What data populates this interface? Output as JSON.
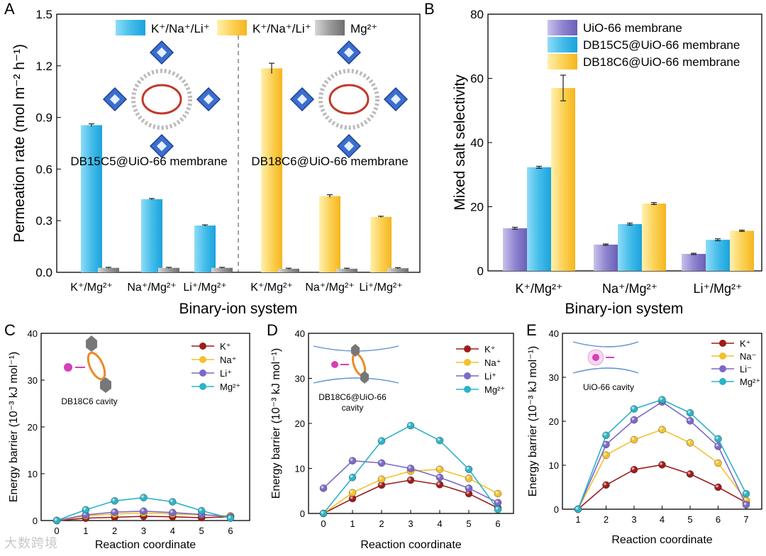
{
  "panel_letters": [
    "A",
    "B",
    "C",
    "D",
    "E"
  ],
  "watermark": "大数跨境",
  "chart_data": [
    {
      "panel": "A",
      "type": "bar",
      "xlabel": "Binary-ion system",
      "ylabel": "Permeation rate (mol m⁻² h⁻¹)",
      "ylim": [
        0,
        1.5
      ],
      "yticks": [
        "0.0",
        "0.3",
        "0.6",
        "0.9",
        "1.2",
        "1.5"
      ],
      "categories": [
        "K⁺/Mg²⁺",
        "Na⁺/Mg²⁺",
        "Li⁺/Mg²⁺",
        "K⁺/Mg²⁺",
        "Na⁺/Mg²⁺",
        "Li⁺/Mg²⁺"
      ],
      "legend": [
        "K⁺/Na⁺/Li⁺",
        "K⁺/Na⁺/Li⁺",
        "Mg²⁺"
      ],
      "groups": [
        "DB15C5@UiO-66 membrane",
        "DB18C6@UiO-66 membrane"
      ],
      "series": [
        {
          "name": "K⁺/Na⁺/Li⁺ (DB15C5)",
          "color": "#39b6e8",
          "values": [
            0.855,
            0.425,
            0.272,
            null,
            null,
            null
          ],
          "errors": [
            0.008,
            0.004,
            0.004,
            null,
            null,
            null
          ]
        },
        {
          "name": "K⁺/Na⁺/Li⁺ (DB18C6)",
          "color": "#fbc93b",
          "values": [
            null,
            null,
            null,
            1.185,
            0.443,
            0.322
          ],
          "errors": [
            null,
            null,
            null,
            0.03,
            0.008,
            0.004
          ]
        },
        {
          "name": "Mg²⁺",
          "color": "#9a9a9a",
          "values": [
            0.026,
            0.026,
            0.026,
            0.021,
            0.021,
            0.024
          ],
          "errors": [
            0.003,
            0.003,
            0.003,
            0.003,
            0.003,
            0.003
          ]
        }
      ]
    },
    {
      "panel": "B",
      "type": "bar",
      "xlabel": "Binary-ion system",
      "ylabel": "Mixed salt selectivity",
      "ylim": [
        0,
        80
      ],
      "yticks": [
        "0",
        "20",
        "40",
        "60",
        "80"
      ],
      "categories": [
        "K⁺/Mg²⁺",
        "Na⁺/Mg²⁺",
        "Li⁺/Mg²⁺"
      ],
      "legend_position": "top-right",
      "series": [
        {
          "name": "UiO-66 membrane",
          "color": "#8b80c9",
          "values": [
            13.3,
            8.2,
            5.3
          ],
          "errors": [
            0.3,
            0.2,
            0.2
          ]
        },
        {
          "name": "DB15C5@UiO-66 membrane",
          "color": "#39b6e8",
          "values": [
            32.3,
            14.6,
            9.7
          ],
          "errors": [
            0.3,
            0.3,
            0.3
          ]
        },
        {
          "name": "DB18C6@UiO-66 membrane",
          "color": "#fbc93b",
          "values": [
            57.0,
            21.0,
            12.5
          ],
          "errors": [
            4.0,
            0.3,
            0.2
          ]
        }
      ]
    },
    {
      "panel": "C",
      "type": "line",
      "xlabel": "Reaction coordinate",
      "ylabel": "Energy barrier (10⁻³ kJ mol⁻¹)",
      "inset_label": "DB18C6 cavity",
      "ylim": [
        0,
        40
      ],
      "yticks": [
        "0",
        "10",
        "20",
        "30",
        "40"
      ],
      "x": [
        0,
        1,
        2,
        3,
        4,
        5,
        6
      ],
      "xticks": [
        "0",
        "1",
        "2",
        "3",
        "4",
        "5",
        "6"
      ],
      "series": [
        {
          "name": "K⁺",
          "color": "#9e1b1b",
          "values": [
            0,
            0.5,
            0.7,
            0.9,
            0.8,
            0.6,
            0.8
          ]
        },
        {
          "name": "Na⁺",
          "color": "#f2c12e",
          "values": [
            0,
            1.0,
            1.4,
            1.6,
            1.4,
            1.2,
            1.0
          ]
        },
        {
          "name": "Li⁺",
          "color": "#7b68c8",
          "values": [
            0,
            1.2,
            1.8,
            2.0,
            1.7,
            1.3,
            0.8
          ]
        },
        {
          "name": "Mg²⁺",
          "color": "#2bb3c7",
          "values": [
            0,
            2.3,
            4.2,
            4.9,
            4.0,
            2.1,
            0.5
          ]
        }
      ]
    },
    {
      "panel": "D",
      "type": "line",
      "xlabel": "Reaction coordinate",
      "ylabel": "Energy barrier (10⁻³ kJ mol⁻¹)",
      "inset_label": [
        "DB18C6@UiO-66",
        "cavity"
      ],
      "ylim": [
        0,
        40
      ],
      "yticks": [
        "0",
        "10",
        "20",
        "30",
        "40"
      ],
      "x": [
        0,
        1,
        2,
        3,
        4,
        5,
        6
      ],
      "xticks": [
        "0",
        "1",
        "2",
        "3",
        "4",
        "5",
        "6"
      ],
      "series": [
        {
          "name": "K⁺",
          "color": "#9e1b1b",
          "values": [
            0,
            3.3,
            6.3,
            7.4,
            6.4,
            4.4,
            1.2
          ]
        },
        {
          "name": "Na⁺",
          "color": "#f2c12e",
          "values": [
            0,
            4.6,
            7.6,
            9.4,
            9.8,
            7.8,
            4.4
          ]
        },
        {
          "name": "Li⁺",
          "color": "#7b68c8",
          "values": [
            5.6,
            11.7,
            11.2,
            10.0,
            8.0,
            5.6,
            2.4
          ]
        },
        {
          "name": "Mg²⁺",
          "color": "#2bb3c7",
          "values": [
            0,
            8.0,
            16.1,
            19.5,
            16.2,
            9.8,
            0.9
          ]
        }
      ]
    },
    {
      "panel": "E",
      "type": "line",
      "xlabel": "Reaction coordinate",
      "ylabel": "Energy barrier (10⁻³ kJ mol⁻¹)",
      "inset_label": "UiO-66 cavity",
      "ylim": [
        0,
        40
      ],
      "yticks": [
        "0",
        "10",
        "20",
        "30",
        "40"
      ],
      "x": [
        1,
        2,
        3,
        4,
        5,
        6,
        7
      ],
      "xticks": [
        "1",
        "2",
        "3",
        "4",
        "5",
        "6",
        "7"
      ],
      "series": [
        {
          "name": "K⁺",
          "color": "#9e1b1b",
          "values": [
            0,
            5.5,
            9.0,
            10.1,
            8.0,
            5.0,
            1.5
          ]
        },
        {
          "name": "Na⁻",
          "color": "#f2c12e",
          "values": [
            0,
            12.3,
            15.8,
            18.1,
            15.1,
            10.5,
            2.0
          ]
        },
        {
          "name": "Li⁻",
          "color": "#7b68c8",
          "values": [
            0,
            14.7,
            20.3,
            24.4,
            20.1,
            14.3,
            1.0
          ]
        },
        {
          "name": "Mg²⁺",
          "color": "#2bb3c7",
          "values": [
            0,
            16.8,
            22.8,
            24.9,
            21.9,
            16.0,
            3.5
          ]
        }
      ]
    }
  ]
}
